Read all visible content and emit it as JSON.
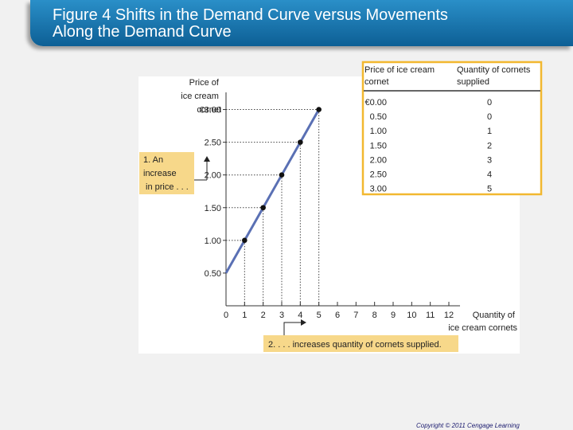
{
  "slide": {
    "title_line1": "Figure 4 Shifts in the Demand Curve versus Movements",
    "title_line2": "Along the Demand Curve",
    "copyright": "Copyright © 2011 Cengage Learning"
  },
  "chart_data": {
    "type": "line",
    "ylabel_lines": [
      "Price of",
      "ice cream",
      "cornet"
    ],
    "xlabel_lines": [
      "Quantity of",
      "ice cream cornets"
    ],
    "x_ticks": [
      "0",
      "1",
      "2",
      "3",
      "4",
      "5",
      "6",
      "7",
      "8",
      "9",
      "10",
      "11",
      "12"
    ],
    "y_ticks": [
      "0.50",
      "1.00",
      "1.50",
      "2.00",
      "2.50",
      "€3.00"
    ],
    "xlim": [
      0,
      12
    ],
    "ylim": [
      0,
      3.25
    ],
    "series": [
      {
        "x": [
          0,
          1,
          2,
          3,
          4,
          5
        ],
        "y": [
          0.5,
          1.0,
          1.5,
          2.0,
          2.5,
          3.0
        ],
        "color": "#5a70b4"
      }
    ],
    "points": [
      {
        "x": 1,
        "y": 1.0
      },
      {
        "x": 2,
        "y": 1.5
      },
      {
        "x": 3,
        "y": 2.0
      },
      {
        "x": 4,
        "y": 2.5
      },
      {
        "x": 5,
        "y": 3.0
      }
    ],
    "annotations": {
      "price_increase_lines": [
        "1. An",
        "increase",
        "in price . . ."
      ],
      "quantity_increase": "2. . . . increases quantity of cornets supplied."
    },
    "table": {
      "headers": [
        [
          "Price of ice cream",
          "cornet"
        ],
        [
          "Quantity of cornets",
          "supplied"
        ]
      ],
      "rows": [
        [
          "€0.00",
          "0"
        ],
        [
          "0.50",
          "0"
        ],
        [
          "1.00",
          "1"
        ],
        [
          "1.50",
          "2"
        ],
        [
          "2.00",
          "3"
        ],
        [
          "2.50",
          "4"
        ],
        [
          "3.00",
          "5"
        ]
      ]
    },
    "colors": {
      "curve": "#5a70b4",
      "annotation_bg": "#f7d88a",
      "table_border": "#f2b830",
      "title_bar": "#1a78b4"
    }
  }
}
